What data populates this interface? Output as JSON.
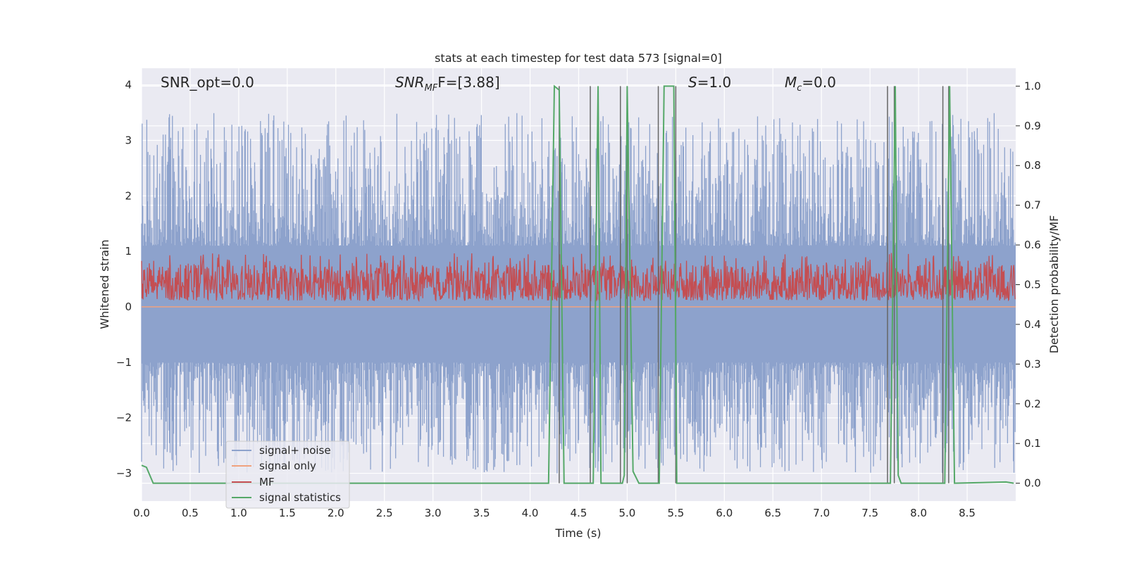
{
  "chart_data": {
    "type": "line",
    "title": "stats at each timestep for test data 573 [signal=0]",
    "xlabel": "Time (s)",
    "ylabel": "Whitened strain",
    "y2label": "Detection probability/MF",
    "xlim": [
      0.0,
      9.0
    ],
    "ylim": [
      -3.5,
      4.3
    ],
    "y2lim": [
      -0.045,
      1.045
    ],
    "x_ticks": [
      "0.0",
      "0.5",
      "1.0",
      "1.5",
      "2.0",
      "2.5",
      "3.0",
      "3.5",
      "4.0",
      "4.5",
      "5.0",
      "5.5",
      "6.0",
      "6.5",
      "7.0",
      "7.5",
      "8.0",
      "8.5"
    ],
    "y_ticks": [
      "4",
      "3",
      "2",
      "1",
      "0",
      "−1",
      "−2",
      "−3"
    ],
    "y2_ticks": [
      "1.0",
      "0.9",
      "0.8",
      "0.7",
      "0.6",
      "0.5",
      "0.4",
      "0.3",
      "0.2",
      "0.1",
      "0.0"
    ],
    "grid": true,
    "legend_position": "lower-left",
    "annotations": {
      "snr_opt": "SNR_opt=0.0",
      "snr_mf_label": "SNR",
      "snr_mf_sub": "MF",
      "snr_mf_value": "F=[3.88]",
      "s_label": "S",
      "s_value": "=1.0",
      "mc_label": "M",
      "mc_sub": "c",
      "mc_value": "=0.0"
    },
    "series": [
      {
        "name": "signal+ noise",
        "color": "#8da2cc",
        "axis": "left",
        "kind": "noise",
        "envelope": [
          -1.0,
          1.1
        ],
        "peak_range": [
          -3.0,
          3.5
        ]
      },
      {
        "name": "signal only",
        "color": "#f0a27e",
        "axis": "left",
        "values_constant": 0.0
      },
      {
        "name": "MF",
        "color": "#c44e52",
        "axis": "right",
        "kind": "noise",
        "base": 0.5,
        "range": [
          0.46,
          0.58
        ]
      },
      {
        "name": "signal statistics",
        "color": "#55a868",
        "axis": "right",
        "x": [
          0.0,
          0.05,
          0.12,
          4.19,
          4.25,
          4.3,
          4.35,
          4.62,
          4.65,
          4.7,
          4.73,
          4.95,
          4.97,
          5.0,
          5.06,
          5.12,
          5.33,
          5.38,
          5.48,
          5.51,
          5.58,
          5.62,
          7.69,
          7.71,
          7.76,
          7.79,
          7.82,
          8.25,
          8.27,
          8.32,
          8.37,
          8.9,
          8.98
        ],
        "y": [
          0.045,
          0.04,
          0.0,
          0.0,
          1.0,
          0.99,
          0.0,
          0.0,
          0.0,
          1.0,
          0.0,
          0.0,
          0.02,
          1.0,
          0.03,
          0.0,
          0.0,
          1.0,
          1.0,
          0.0,
          0.0,
          0.0,
          0.0,
          0.0,
          1.0,
          0.02,
          0.0,
          0.0,
          0.0,
          1.0,
          0.0,
          0.003,
          0.0
        ]
      }
    ],
    "vlines": [
      4.3,
      4.62,
      4.93,
      5.0,
      5.32,
      5.5,
      7.68,
      7.75,
      8.25,
      8.31
    ],
    "vline_color": "#666666"
  }
}
